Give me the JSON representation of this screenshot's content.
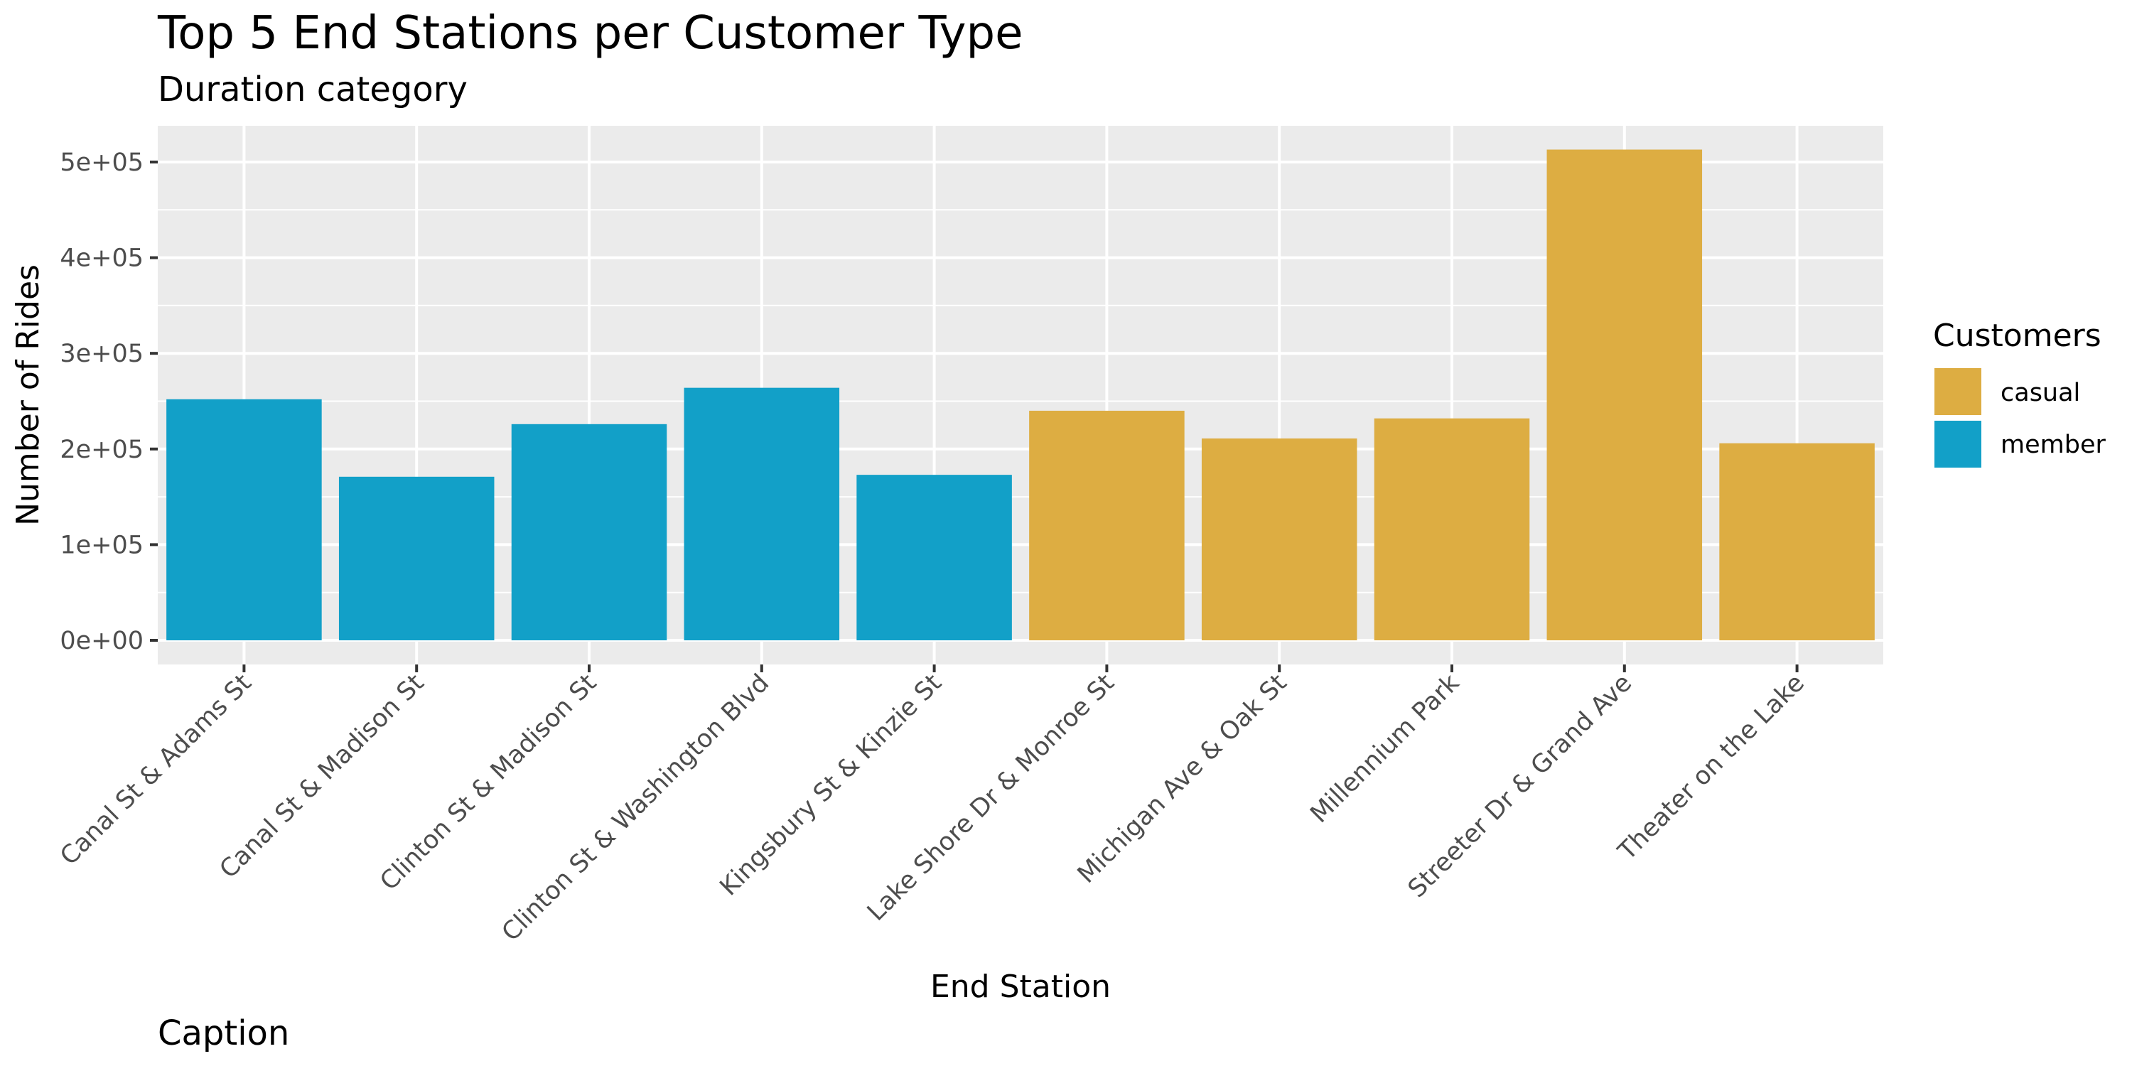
{
  "chart_data": {
    "type": "bar",
    "title": "Top 5 End Stations  per Customer Type",
    "subtitle": "Duration category",
    "caption": "Caption",
    "xlabel": "End Station",
    "ylabel": "Number of Rides",
    "ylim": [
      0,
      540000
    ],
    "y_ticks": [
      0,
      100000,
      200000,
      300000,
      400000,
      500000
    ],
    "y_tick_labels": [
      "0e+00",
      "1e+05",
      "2e+05",
      "3e+05",
      "4e+05",
      "5e+05"
    ],
    "grid": true,
    "legend": {
      "title": "Customers",
      "placement": "right",
      "entries": [
        {
          "label": "casual",
          "color": "#DDAD42"
        },
        {
          "label": "member",
          "color": "#12A0C8"
        }
      ]
    },
    "categories": [
      "Canal St & Adams St",
      "Canal St & Madison St",
      "Clinton St & Madison St",
      "Clinton St & Washington Blvd",
      "Kingsbury St & Kinzie St",
      "Lake Shore Dr & Monroe St",
      "Michigan Ave & Oak St",
      "Millennium Park",
      "Streeter Dr & Grand Ave",
      "Theater on the Lake"
    ],
    "values": [
      252000,
      171000,
      226000,
      264000,
      173000,
      240000,
      211000,
      232000,
      513000,
      206000
    ],
    "customer_type": [
      "member",
      "member",
      "member",
      "member",
      "member",
      "casual",
      "casual",
      "casual",
      "casual",
      "casual"
    ],
    "colors": {
      "casual": "#DDAD42",
      "member": "#12A0C8",
      "panel_background": "#EBEBEB",
      "grid": "#FFFFFF"
    }
  }
}
